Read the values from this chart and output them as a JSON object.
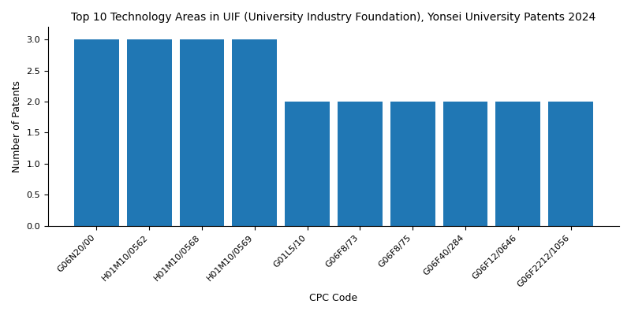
{
  "title": "Top 10 Technology Areas in UIF (University Industry Foundation), Yonsei University Patents 2024",
  "xlabel": "CPC Code",
  "ylabel": "Number of Patents",
  "categories": [
    "G06N20/00",
    "H01M10/0562",
    "H01M10/0568",
    "H01M10/0569",
    "G01L5/10",
    "G06F8/73",
    "G06F8/75",
    "G06F40/284",
    "G06F12/0646",
    "G06F2212/1056"
  ],
  "values": [
    3,
    3,
    3,
    3,
    2,
    2,
    2,
    2,
    2,
    2
  ],
  "bar_color": "#2077b4",
  "ylim": [
    0,
    3.2
  ],
  "yticks": [
    0.0,
    0.5,
    1.0,
    1.5,
    2.0,
    2.5,
    3.0
  ],
  "title_fontsize": 10,
  "axis_label_fontsize": 9,
  "tick_fontsize": 8,
  "bar_width": 0.85,
  "figsize": [
    8.0,
    4.0
  ],
  "dpi": 100
}
